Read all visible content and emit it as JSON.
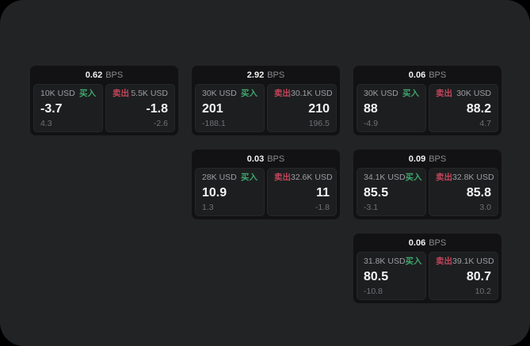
{
  "labels": {
    "buy": "买入",
    "sell": "卖出",
    "bps_unit": "BPS"
  },
  "colors": {
    "page_bg": "#222325",
    "card_bg": "#121214",
    "panel_bg": "#1d1e20",
    "buy_green": "#3fa56c",
    "sell_red": "#c2455a"
  },
  "cards": [
    {
      "bps": "0.62",
      "buy": {
        "amount": "10K USD",
        "price": "-3.7",
        "sub": "4.3"
      },
      "sell": {
        "amount": "5.5K USD",
        "price": "-1.8",
        "sub": "-2.6"
      }
    },
    {
      "bps": "2.92",
      "buy": {
        "amount": "30K USD",
        "price": "201",
        "sub": "-188.1"
      },
      "sell": {
        "amount": "30.1K USD",
        "price": "210",
        "sub": "196.5"
      }
    },
    {
      "bps": "0.06",
      "buy": {
        "amount": "30K USD",
        "price": "88",
        "sub": "-4.9"
      },
      "sell": {
        "amount": "30K USD",
        "price": "88.2",
        "sub": "4.7"
      }
    },
    {
      "bps": "0.03",
      "buy": {
        "amount": "28K USD",
        "price": "10.9",
        "sub": "1.3"
      },
      "sell": {
        "amount": "32.6K USD",
        "price": "11",
        "sub": "-1.8"
      }
    },
    {
      "bps": "0.09",
      "buy": {
        "amount": "34.1K USD",
        "price": "85.5",
        "sub": "-3.1"
      },
      "sell": {
        "amount": "32.8K USD",
        "price": "85.8",
        "sub": "3.0"
      }
    },
    {
      "bps": "0.06",
      "buy": {
        "amount": "31.8K USD",
        "price": "80.5",
        "sub": "-10.8"
      },
      "sell": {
        "amount": "39.1K USD",
        "price": "80.7",
        "sub": "10.2"
      }
    }
  ]
}
